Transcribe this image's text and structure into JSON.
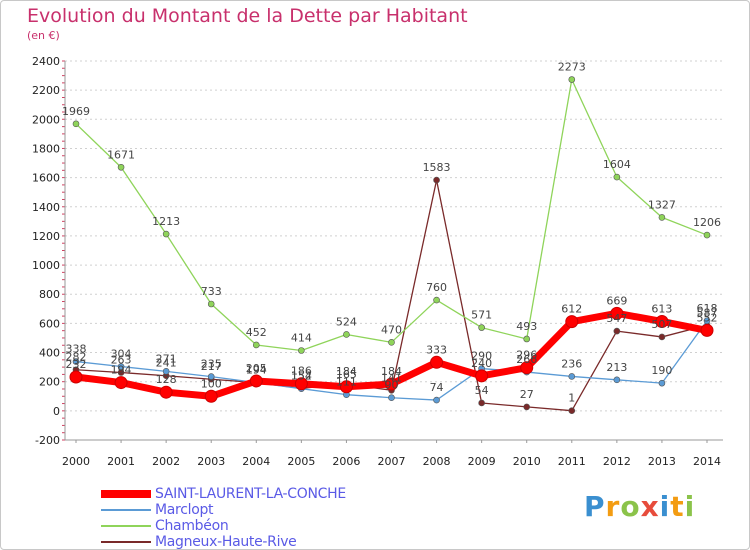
{
  "chart_data": {
    "type": "line",
    "title": "Evolution du Montant de la Dette par Habitant",
    "subtitle": "(en €)",
    "x": [
      "2000",
      "2001",
      "2002",
      "2003",
      "2004",
      "2005",
      "2006",
      "2007",
      "2008",
      "2009",
      "2010",
      "2011",
      "2012",
      "2013",
      "2014"
    ],
    "ylim": [
      -200,
      2400
    ],
    "yticks": [
      -200,
      0,
      200,
      400,
      600,
      800,
      1000,
      1200,
      1400,
      1600,
      1800,
      2000,
      2200,
      2400
    ],
    "grid": "horizontal-dotted",
    "legend_position": "bottom-left",
    "series": [
      {
        "name": "SAINT-LAURENT-LA-CONCHE",
        "color": "#ff0000",
        "values": [
          232,
          194,
          128,
          100,
          205,
          186,
          165,
          184,
          333,
          240,
          296,
          612,
          669,
          613,
          552
        ]
      },
      {
        "name": "Marclopt",
        "color": "#5b9bd5",
        "values": [
          338,
          304,
          271,
          235,
          194,
          152,
          111,
          90,
          74,
          290,
          266,
          236,
          213,
          190,
          618
        ]
      },
      {
        "name": "Chambéon",
        "color": "#8fd45a",
        "values": [
          1969,
          1671,
          1213,
          733,
          452,
          414,
          524,
          470,
          760,
          571,
          493,
          2273,
          1604,
          1327,
          1206
        ]
      },
      {
        "name": "Magneux-Haute-Rive",
        "color": "#7a2a2a",
        "values": [
          282,
          263,
          241,
          217,
          194,
          154,
          184,
          141,
          1583,
          54,
          27,
          1,
          547,
          507,
          587
        ]
      }
    ]
  },
  "logo": {
    "text": "Proxiti",
    "letters": [
      "P",
      "r",
      "o",
      "x",
      "i",
      "t",
      "i"
    ]
  }
}
